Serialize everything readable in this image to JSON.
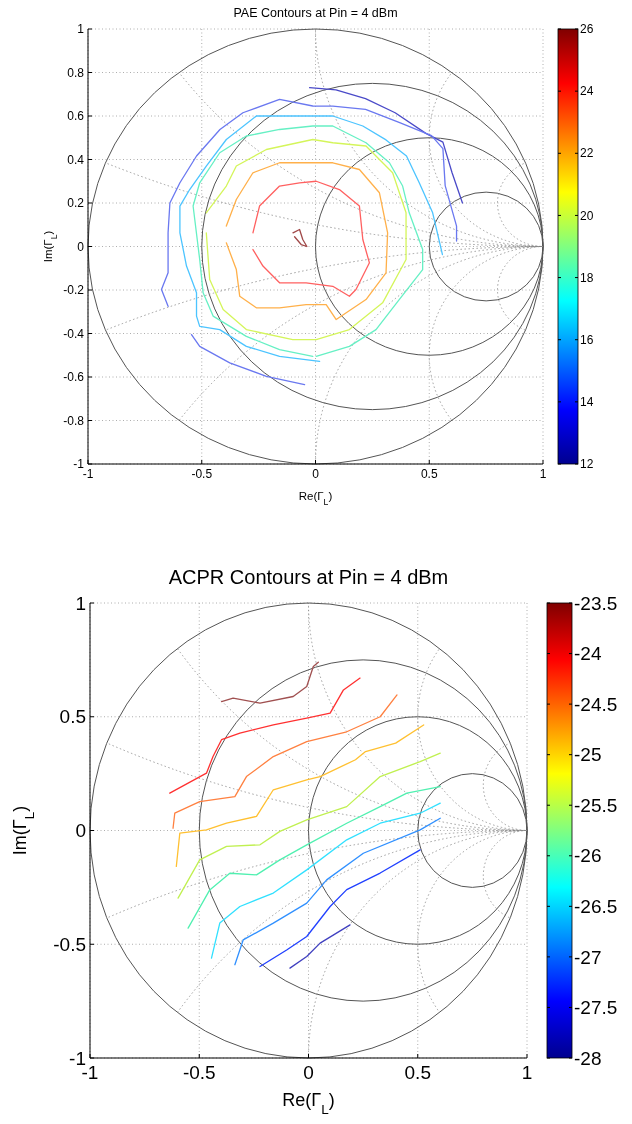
{
  "chart_data": [
    {
      "type": "line",
      "title": "PAE Contours at Pin = 4 dBm",
      "xlabel": "Re(Γ$_{L}$)",
      "ylabel": "Im(Γ$_{L}$)",
      "xlim": [
        -1,
        1
      ],
      "ylim": [
        -1,
        1
      ],
      "xticks": [
        -1,
        -0.5,
        0,
        0.5,
        1
      ],
      "yticks": [
        -1,
        -0.8,
        -0.6,
        -0.4,
        -0.2,
        0,
        0.2,
        0.4,
        0.6,
        0.8,
        1
      ],
      "grid": true,
      "clim": [
        12,
        26
      ],
      "cticks": [
        12,
        14,
        16,
        18,
        20,
        22,
        24,
        26
      ],
      "series": [
        {
          "color": "#4a4ac8",
          "x": [
            -0.026,
            0.09,
            0.22,
            0.35,
            0.485,
            0.56,
            0.6,
            0.646
          ],
          "values": [
            0.73,
            0.72,
            0.68,
            0.615,
            0.52,
            0.48,
            0.34,
            0.2
          ]
        },
        {
          "color": "#6a78f0",
          "x": [
            -0.648,
            -0.677,
            -0.648,
            -0.648,
            -0.64,
            -0.596,
            -0.523,
            -0.42,
            -0.319,
            -0.158,
            -0.012,
            0.076,
            0.22,
            0.37,
            0.51,
            0.56,
            0.57,
            0.62,
            0.62
          ],
          "values": [
            -0.275,
            -0.198,
            -0.121,
            0.063,
            0.2,
            0.293,
            0.416,
            0.538,
            0.615,
            0.676,
            0.646,
            0.645,
            0.63,
            0.57,
            0.51,
            0.45,
            0.28,
            0.094,
            0.025
          ]
        },
        {
          "color": "#6a78f0",
          "x": [
            -0.545,
            -0.509,
            -0.377,
            -0.216,
            -0.048
          ],
          "values": [
            -0.405,
            -0.459,
            -0.535,
            -0.597,
            -0.635
          ]
        },
        {
          "color": "#4cc4ff",
          "x": [
            0.018,
            -0.158,
            -0.304,
            -0.421,
            -0.509,
            -0.523,
            -0.523,
            -0.567,
            -0.596,
            -0.596,
            -0.553,
            -0.48,
            -0.392,
            -0.26,
            -0.012,
            0.076,
            0.208,
            0.31,
            0.4,
            0.456,
            0.515,
            0.558
          ],
          "values": [
            -0.528,
            -0.505,
            -0.459,
            -0.382,
            -0.367,
            -0.32,
            -0.213,
            -0.09,
            0.063,
            0.186,
            0.262,
            0.37,
            0.492,
            0.6,
            0.6,
            0.6,
            0.554,
            0.49,
            0.416,
            0.293,
            0.155,
            -0.037
          ]
        },
        {
          "color": "#66f0c4",
          "x": [
            -0.012,
            -0.158,
            -0.304,
            -0.45,
            -0.494,
            -0.509,
            -0.538,
            -0.509,
            -0.421,
            -0.304,
            -0.158,
            -0.012,
            0.076,
            0.222,
            0.325,
            0.383,
            0.412,
            0.471,
            0.471,
            0.368,
            0.266,
            0.149,
            0.003
          ],
          "values": [
            -0.505,
            -0.474,
            -0.413,
            -0.32,
            -0.213,
            -0.06,
            0.186,
            0.293,
            0.431,
            0.508,
            0.538,
            0.554,
            0.554,
            0.477,
            0.385,
            0.278,
            0.155,
            -0.014,
            -0.106,
            -0.244,
            -0.382,
            -0.459,
            -0.505
          ]
        },
        {
          "color": "#d4f55a",
          "x": [
            -0.48,
            -0.392,
            -0.348,
            -0.216,
            -0.012,
            0.076,
            0.222,
            0.339,
            0.398,
            0.398,
            0.295,
            0.149,
            0.003,
            -0.1,
            -0.304,
            -0.406,
            -0.465,
            -0.48
          ],
          "values": [
            0.155,
            0.278,
            0.37,
            0.446,
            0.492,
            0.477,
            0.462,
            0.339,
            0.155,
            -0.06,
            -0.259,
            -0.382,
            -0.428,
            -0.428,
            -0.382,
            -0.29,
            -0.152,
            0.063
          ]
        },
        {
          "color": "#ffb04a",
          "x": [
            -0.392,
            -0.348,
            -0.275,
            -0.158,
            -0.012,
            0.076,
            0.193,
            0.281,
            0.317,
            0.31,
            0.222,
            0.091,
            0.047,
            -0.041,
            -0.158,
            -0.26,
            -0.333,
            -0.348,
            -0.392
          ],
          "values": [
            0.094,
            0.216,
            0.339,
            0.385,
            0.385,
            0.385,
            0.354,
            0.247,
            0.063,
            -0.121,
            -0.244,
            -0.336,
            -0.267,
            -0.267,
            -0.282,
            -0.282,
            -0.229,
            -0.106,
            0.017
          ]
        },
        {
          "color": "#ff6060",
          "x": [
            -0.275,
            -0.246,
            -0.158,
            -0.07,
            0.003,
            0.105,
            0.193,
            0.208,
            0.237,
            0.178,
            0.149,
            0.076,
            -0.041,
            -0.158,
            -0.231,
            -0.275
          ],
          "values": [
            0.063,
            0.186,
            0.278,
            0.293,
            0.3,
            0.262,
            0.186,
            0.032,
            -0.075,
            -0.198,
            -0.229,
            -0.183,
            -0.167,
            -0.167,
            -0.09,
            -0.014
          ]
        },
        {
          "color": "#a04848",
          "x": [
            -0.099,
            -0.07,
            -0.056,
            -0.038,
            -0.063,
            -0.092
          ],
          "values": [
            0.063,
            0.078,
            0.032,
            0.0,
            0.009,
            0.045
          ]
        }
      ]
    },
    {
      "type": "line",
      "title": "ACPR Contours at Pin = 4 dBm",
      "xlabel": "Re(Γ$_{L}$)",
      "ylabel": "Im(Γ$_{L}$)",
      "xlim": [
        -1,
        1
      ],
      "ylim": [
        -1,
        1
      ],
      "xticks": [
        -1,
        -0.5,
        0,
        0.5,
        1
      ],
      "yticks": [
        -1,
        -0.5,
        0,
        0.5,
        1
      ],
      "grid": true,
      "clim": [
        -28,
        -23.5
      ],
      "cticks": [
        -28,
        -27.5,
        -27,
        -26.5,
        -26,
        -25.5,
        -25,
        -24.5,
        -24,
        -23.5
      ],
      "series": [
        {
          "color": "#a05050",
          "x": [
            -0.398,
            -0.345,
            -0.222,
            -0.07,
            -0.008,
            0.022,
            0.045
          ],
          "values": [
            0.567,
            0.582,
            0.56,
            0.589,
            0.633,
            0.721,
            0.74
          ]
        },
        {
          "color": "#ff3030",
          "x": [
            -0.635,
            -0.467,
            -0.437,
            -0.398,
            -0.314,
            -0.161,
            -0.008,
            0.099,
            0.16,
            0.236
          ],
          "values": [
            0.164,
            0.252,
            0.325,
            0.399,
            0.428,
            0.464,
            0.494,
            0.516,
            0.618,
            0.67
          ]
        },
        {
          "color": "#ff8040",
          "x": [
            -0.62,
            -0.612,
            -0.498,
            -0.337,
            -0.284,
            -0.161,
            -0.008,
            0.175,
            0.328,
            0.405
          ],
          "values": [
            0.01,
            0.076,
            0.127,
            0.149,
            0.237,
            0.325,
            0.391,
            0.434,
            0.5,
            0.596
          ]
        },
        {
          "color": "#ffc030",
          "x": [
            -0.605,
            -0.589,
            -0.467,
            -0.375,
            -0.238,
            -0.161,
            -0.008,
            0.053,
            0.215,
            0.261,
            0.399,
            0.527
          ],
          "values": [
            -0.158,
            -0.012,
            0.003,
            0.032,
            0.062,
            0.179,
            0.223,
            0.237,
            0.311,
            0.347,
            0.384,
            0.464
          ]
        },
        {
          "color": "#c0f050",
          "x": [
            -0.597,
            -0.498,
            -0.375,
            -0.222,
            -0.131,
            -0.008,
            0.175,
            0.328,
            0.511,
            0.603
          ],
          "values": [
            -0.297,
            -0.129,
            -0.07,
            -0.063,
            -0.004,
            0.047,
            0.105,
            0.237,
            0.303,
            0.34
          ]
        },
        {
          "color": "#50f0b0",
          "x": [
            -0.551,
            -0.452,
            -0.36,
            -0.238,
            -0.131,
            -0.008,
            0.175,
            0.328,
            0.45,
            0.603
          ],
          "values": [
            -0.429,
            -0.261,
            -0.188,
            -0.195,
            -0.129,
            -0.063,
            0.032,
            0.105,
            0.164,
            0.193
          ]
        },
        {
          "color": "#30e0ff",
          "x": [
            -0.444,
            -0.406,
            -0.314,
            -0.161,
            -0.008,
            0.175,
            0.328,
            0.511,
            0.603
          ],
          "values": [
            -0.561,
            -0.407,
            -0.334,
            -0.275,
            -0.173,
            -0.041,
            0.032,
            0.076,
            0.12
          ]
        },
        {
          "color": "#3090ff",
          "x": [
            -0.337,
            -0.299,
            -0.161,
            -0.008,
            0.083,
            0.251,
            0.511,
            0.603
          ],
          "values": [
            -0.59,
            -0.481,
            -0.407,
            -0.319,
            -0.217,
            -0.1,
            0.003,
            0.054
          ]
        },
        {
          "color": "#2040ff",
          "x": [
            -0.222,
            -0.1,
            -0.008,
            0.099,
            0.175,
            0.328,
            0.511
          ],
          "values": [
            -0.598,
            -0.525,
            -0.466,
            -0.334,
            -0.26,
            -0.187,
            -0.085
          ]
        },
        {
          "color": "#4040c0",
          "x": [
            -0.085,
            -0.008,
            0.053,
            0.19
          ],
          "values": [
            -0.605,
            -0.554,
            -0.495,
            -0.415
          ]
        }
      ]
    }
  ]
}
